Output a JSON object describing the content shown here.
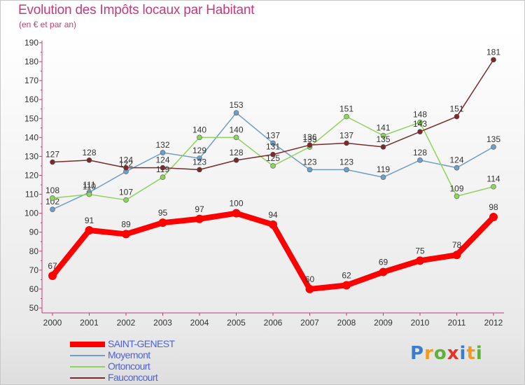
{
  "header": {
    "title": "Evolution des Impôts locaux par Habitant",
    "subtitle": "(en € et par an)"
  },
  "brand": {
    "letters": [
      "P",
      "r",
      "o",
      "x",
      "i",
      "t",
      "i"
    ],
    "colors": [
      "#3a7ec9",
      "#f29a1e",
      "#5fb13a",
      "#e53226",
      "#3a7ec9",
      "#f29a1e",
      "#5fb13a"
    ]
  },
  "chart_data": {
    "type": "line",
    "x": [
      "2000",
      "2001",
      "2002",
      "2003",
      "2004",
      "2005",
      "2006",
      "2007",
      "2008",
      "2009",
      "2010",
      "2011",
      "2012"
    ],
    "ylim": [
      50,
      190
    ],
    "yticks": [
      50,
      60,
      70,
      80,
      90,
      100,
      110,
      120,
      130,
      140,
      150,
      160,
      170,
      180,
      190
    ],
    "grid": false,
    "legend_position": "bottom-left",
    "series": [
      {
        "name": "SAINT-GENEST",
        "color": "#ff0000",
        "width": 8,
        "marker": 6,
        "values": [
          67,
          91,
          89,
          95,
          97,
          100,
          94,
          60,
          62,
          69,
          75,
          78,
          98
        ]
      },
      {
        "name": "Moyemont",
        "color": "#6e9fc8",
        "width": 1.5,
        "marker": 3.5,
        "values": [
          102,
          111,
          122,
          132,
          129,
          153,
          137,
          123,
          123,
          119,
          128,
          124,
          135
        ]
      },
      {
        "name": "Ortoncourt",
        "color": "#8dd45a",
        "width": 1.5,
        "marker": 3.5,
        "values": [
          108,
          110,
          107,
          119,
          140,
          140,
          125,
          135,
          151,
          141,
          148,
          109,
          114
        ]
      },
      {
        "name": "Fauconcourt",
        "color": "#7a2a2a",
        "width": 1.5,
        "marker": 3.5,
        "values": [
          127,
          128,
          124,
          124,
          123,
          128,
          131,
          136,
          137,
          135,
          143,
          151,
          181
        ]
      }
    ],
    "axis_color": "#c43b7a",
    "label_color": "#333333"
  },
  "legend": {
    "label_color": "#4a62e0"
  }
}
